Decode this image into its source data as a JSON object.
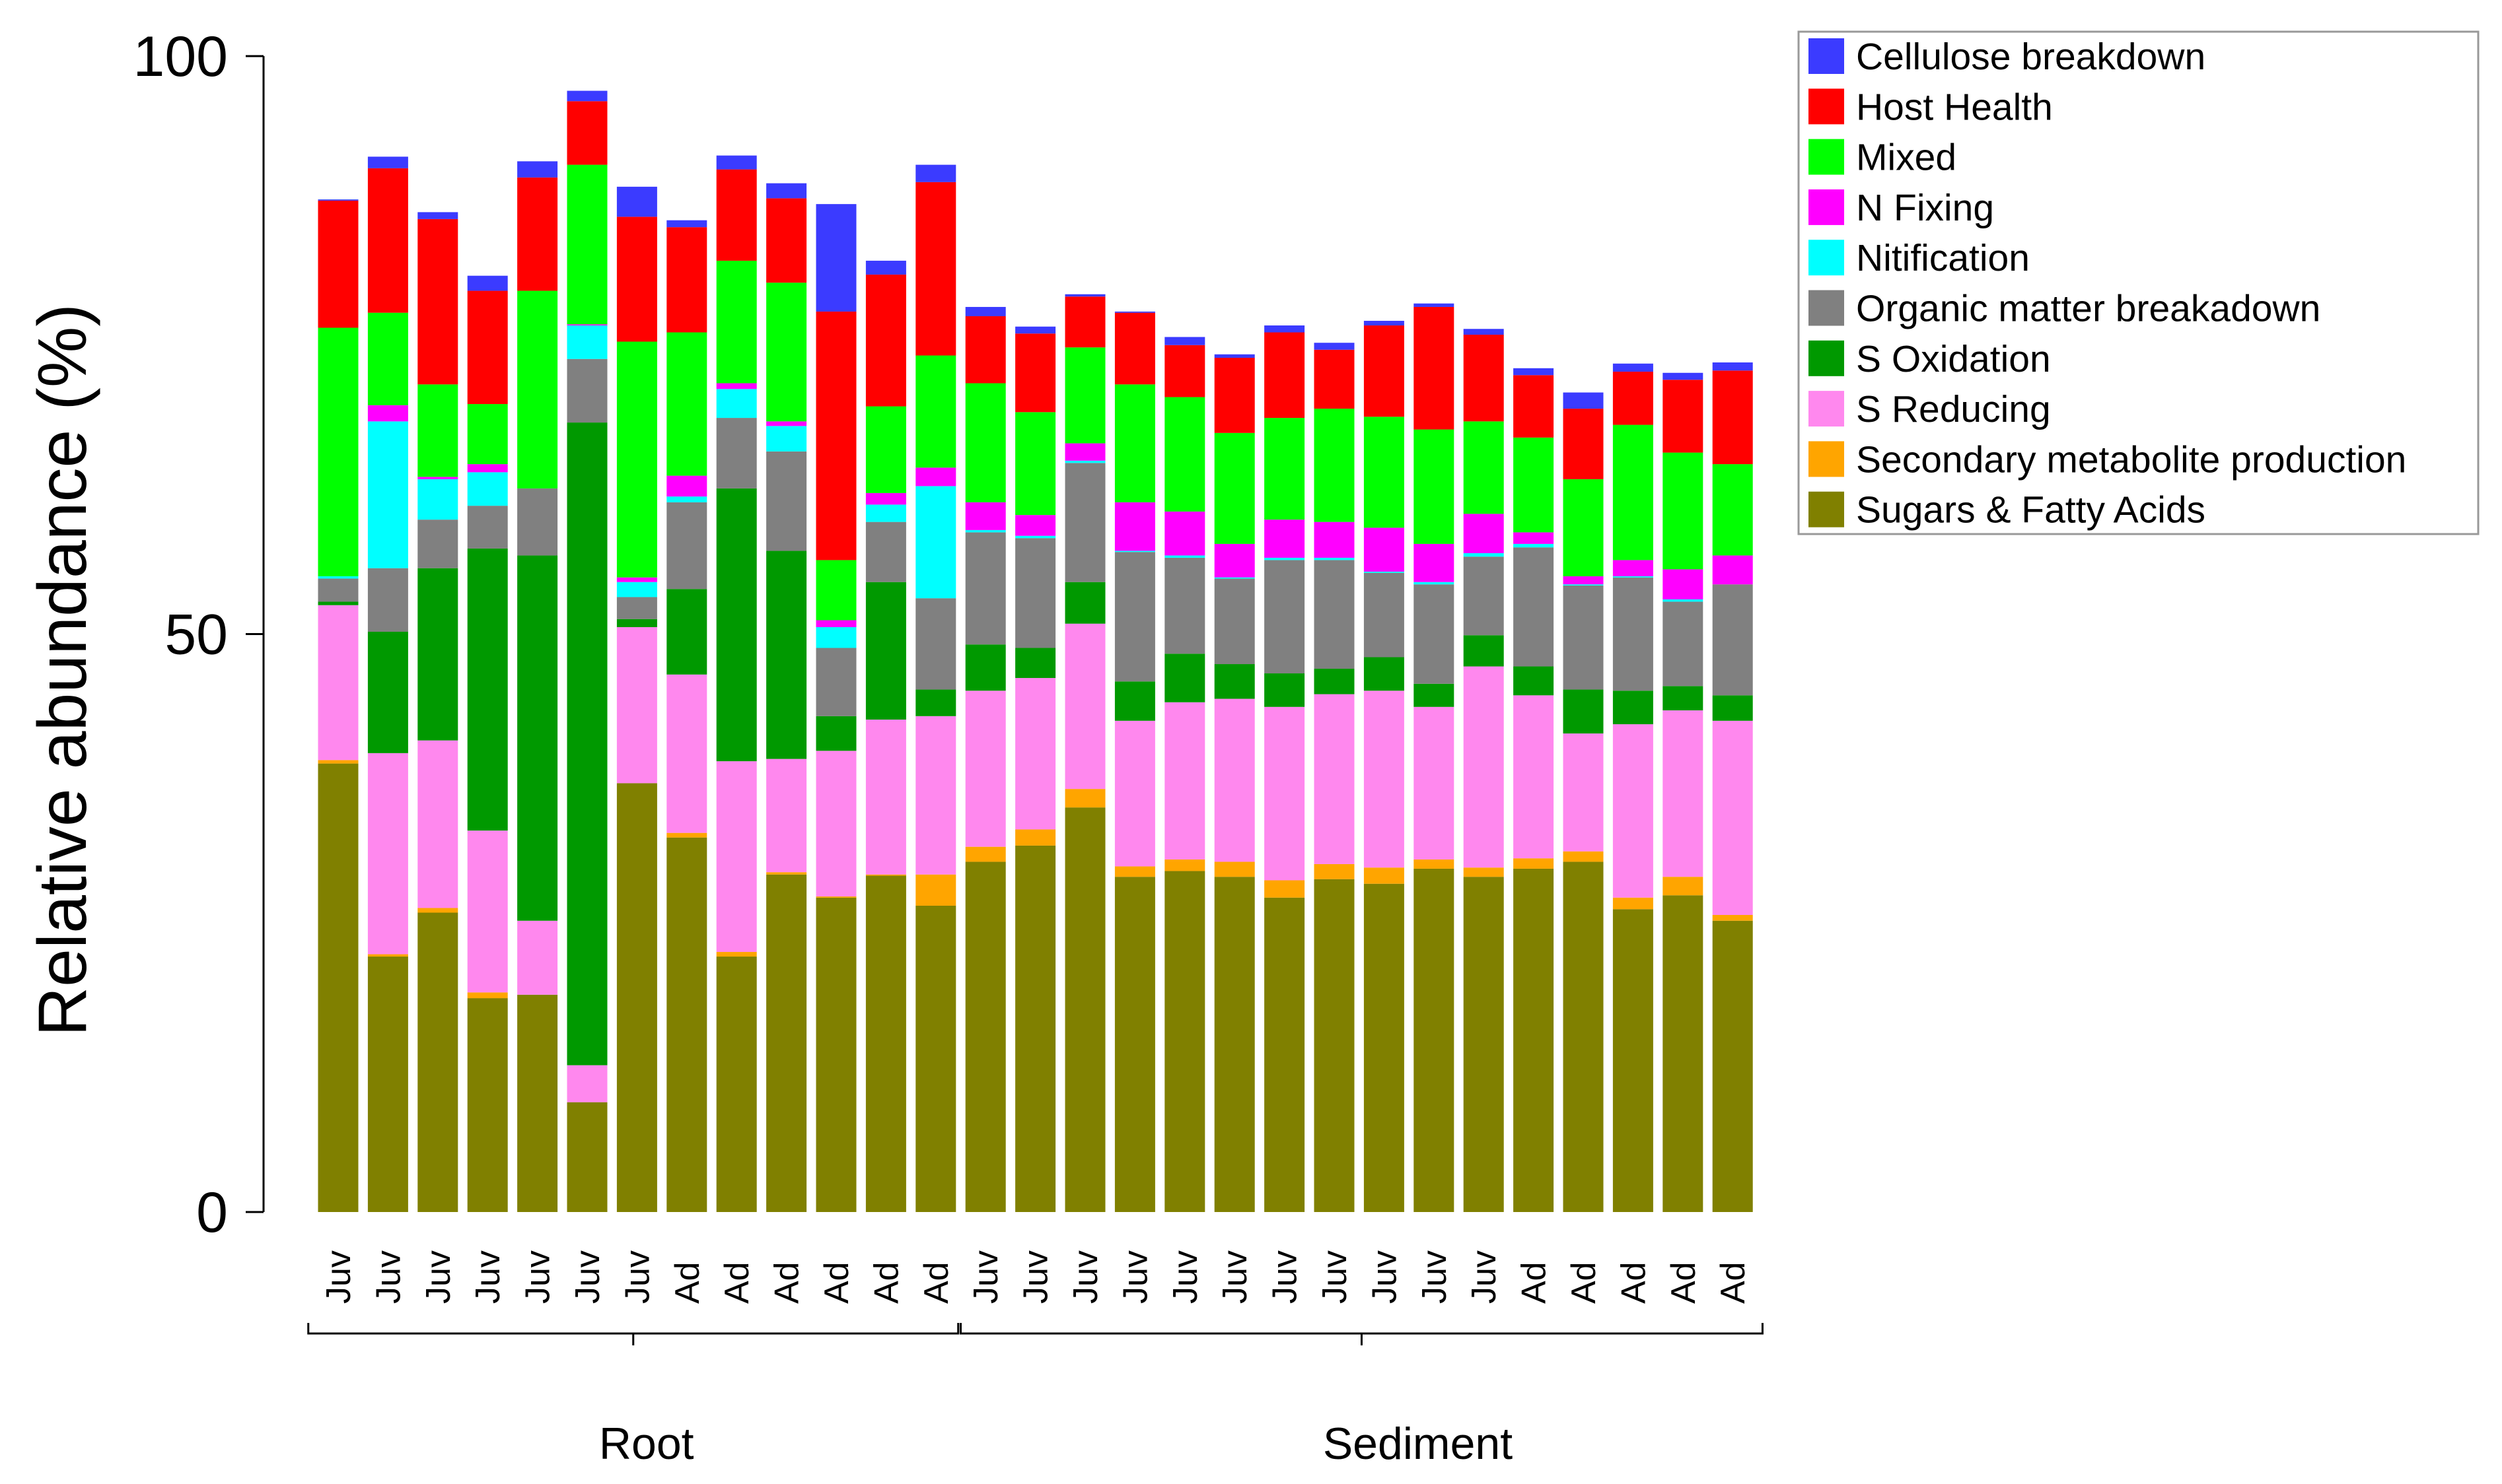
{
  "chart_data": {
    "type": "bar",
    "stacked": true,
    "title": "",
    "xlabel": "",
    "ylabel": "Relative abundance (%)",
    "ylim": [
      0,
      100
    ],
    "yticks": [
      "0",
      "50",
      "100"
    ],
    "grid": false,
    "legend_position": "top-right",
    "categories": [
      "Juv",
      "Juv",
      "Juv",
      "Juv",
      "Juv",
      "Juv",
      "Juv",
      "Ad",
      "Ad",
      "Ad",
      "Ad",
      "Ad",
      "Ad",
      "Juv",
      "Juv",
      "Juv",
      "Juv",
      "Juv",
      "Juv",
      "Juv",
      "Juv",
      "Juv",
      "Juv",
      "Juv",
      "Ad",
      "Ad",
      "Ad",
      "Ad",
      "Ad"
    ],
    "groups": [
      {
        "label": "Root",
        "count": 13
      },
      {
        "label": "Sediment",
        "count": 16
      }
    ],
    "series": [
      {
        "name": "Sugars & Fatty Acids",
        "color": "#808000",
        "values": [
          38.8,
          22.1,
          25.9,
          18.5,
          18.8,
          9.5,
          37.1,
          32.4,
          22.1,
          29.2,
          27.2,
          29.1,
          26.5,
          30.3,
          31.7,
          35.0,
          29.0,
          29.5,
          29.0,
          27.2,
          28.8,
          28.4,
          29.7,
          29.0,
          29.7,
          30.3,
          26.2,
          27.4,
          25.2
        ]
      },
      {
        "name": "Secondary metabolite production",
        "color": "#FFA500",
        "values": [
          0.3,
          0.2,
          0.4,
          0.5,
          0,
          0,
          0,
          0.4,
          0.4,
          0.2,
          0.1,
          0.1,
          2.7,
          1.3,
          1.4,
          1.6,
          0.9,
          1.0,
          1.3,
          1.5,
          1.3,
          1.4,
          0.8,
          0.8,
          0.9,
          0.9,
          1.0,
          1.6,
          0.5
        ]
      },
      {
        "name": "S Reducing",
        "color": "#FF88EE",
        "values": [
          13.4,
          17.4,
          14.5,
          14.0,
          6.4,
          3.2,
          13.5,
          13.7,
          16.5,
          9.8,
          12.6,
          13.4,
          13.7,
          13.5,
          13.1,
          14.3,
          12.6,
          13.6,
          14.1,
          15.0,
          14.7,
          15.3,
          13.2,
          17.4,
          14.1,
          10.2,
          15.0,
          14.4,
          16.8
        ]
      },
      {
        "name": "S Oxidation",
        "color": "#009900",
        "values": [
          0.3,
          10.5,
          14.9,
          24.4,
          31.6,
          55.6,
          0.7,
          7.4,
          23.6,
          18.0,
          3.0,
          11.9,
          2.3,
          4.0,
          2.6,
          3.6,
          3.4,
          4.2,
          3.0,
          2.9,
          2.2,
          2.9,
          2.0,
          2.7,
          2.5,
          3.8,
          2.9,
          2.1,
          2.2
        ]
      },
      {
        "name": "Organic matter breakadown",
        "color": "#808080",
        "values": [
          2.0,
          5.5,
          4.2,
          3.7,
          5.8,
          5.5,
          1.9,
          7.5,
          6.1,
          8.6,
          5.9,
          5.2,
          7.9,
          9.7,
          9.5,
          10.3,
          11.2,
          8.3,
          7.4,
          9.8,
          9.4,
          7.3,
          8.6,
          6.8,
          10.3,
          9.0,
          9.8,
          7.3,
          9.6
        ]
      },
      {
        "name": "Nitification",
        "color": "#00FFFF",
        "values": [
          0.2,
          12.7,
          3.5,
          2.9,
          0,
          2.9,
          1.3,
          0.5,
          2.5,
          2.2,
          1.8,
          1.5,
          9.7,
          0.2,
          0.2,
          0.2,
          0.1,
          0.2,
          0.1,
          0.2,
          0.2,
          0.1,
          0.2,
          0.3,
          0.3,
          0.1,
          0.1,
          0.2,
          0
        ]
      },
      {
        "name": "N Fixing",
        "color": "#FF00FF",
        "values": [
          0,
          1.4,
          0.2,
          0.7,
          0,
          0.1,
          0.4,
          1.8,
          0.5,
          0.4,
          0.6,
          1.0,
          1.6,
          2.4,
          1.8,
          1.5,
          4.2,
          3.8,
          2.9,
          3.3,
          3.1,
          3.8,
          3.3,
          3.4,
          1.0,
          0.7,
          1.4,
          2.6,
          2.5
        ]
      },
      {
        "name": "Mixed",
        "color": "#00FF00",
        "values": [
          21.5,
          8.0,
          8.0,
          5.2,
          17.1,
          13.8,
          20.4,
          12.4,
          10.6,
          12.0,
          5.2,
          7.5,
          9.7,
          10.3,
          8.9,
          8.3,
          10.2,
          9.9,
          9.6,
          8.8,
          9.8,
          9.6,
          9.9,
          8.0,
          8.2,
          8.4,
          11.7,
          10.1,
          7.9
        ]
      },
      {
        "name": "Host Health",
        "color": "#FF0000",
        "values": [
          11.0,
          12.5,
          14.3,
          9.8,
          9.8,
          5.5,
          10.8,
          9.1,
          7.9,
          7.3,
          21.5,
          11.4,
          15.0,
          5.8,
          6.8,
          4.4,
          6.2,
          4.5,
          6.5,
          7.4,
          5.1,
          7.9,
          10.6,
          7.5,
          5.4,
          6.1,
          4.6,
          6.3,
          8.1
        ]
      },
      {
        "name": "Cellulose breakdown",
        "color": "#3B3BFF",
        "values": [
          0.1,
          1.0,
          0.6,
          1.3,
          1.4,
          0.9,
          2.6,
          0.6,
          1.2,
          1.3,
          9.3,
          1.2,
          1.5,
          0.8,
          0.6,
          0.2,
          0.1,
          0.7,
          0.3,
          0.6,
          0.6,
          0.4,
          0.3,
          0.5,
          0.6,
          1.4,
          0.7,
          0.6,
          0.7
        ]
      }
    ],
    "legend_order": [
      "Cellulose breakdown",
      "Host Health",
      "Mixed",
      "N Fixing",
      "Nitification",
      "Organic matter breakadown",
      "S Oxidation",
      "S Reducing",
      "Secondary metabolite production",
      "Sugars & Fatty Acids"
    ]
  }
}
